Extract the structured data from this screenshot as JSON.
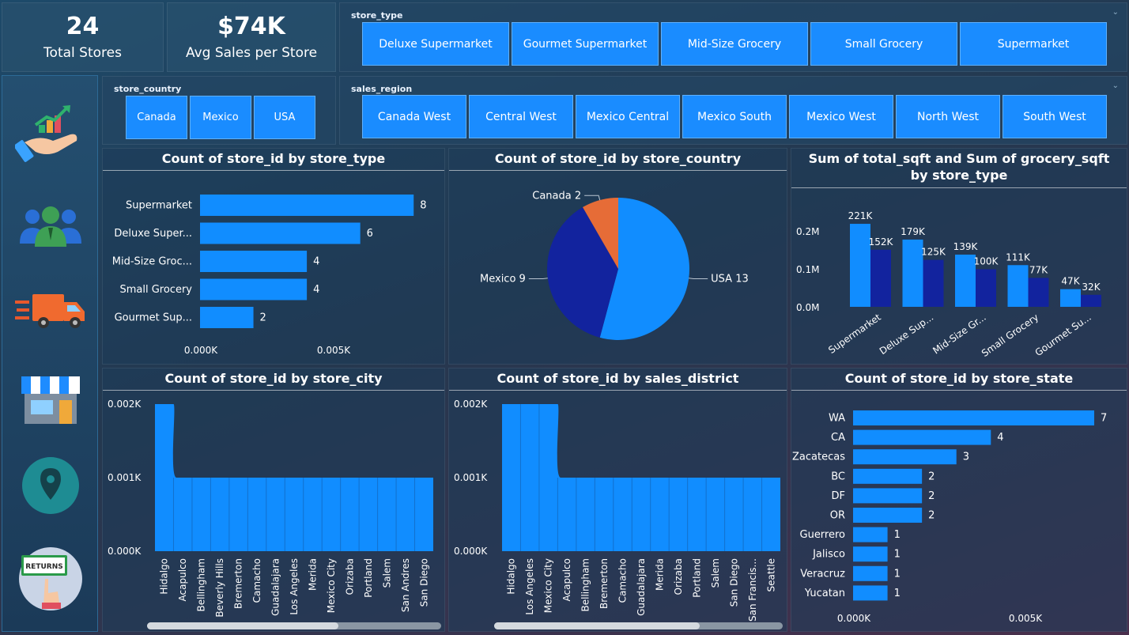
{
  "kpis": [
    {
      "value": "24",
      "label": "Total Stores"
    },
    {
      "value": "$74K",
      "label": "Avg Sales per Store"
    }
  ],
  "slicers": {
    "store_type": {
      "title": "store_type",
      "options": [
        "Deluxe Supermarket",
        "Gourmet Supermarket",
        "Mid-Size Grocery",
        "Small Grocery",
        "Supermarket"
      ]
    },
    "store_country": {
      "title": "store_country",
      "options": [
        "Canada",
        "Mexico",
        "USA"
      ]
    },
    "sales_region": {
      "title": "sales_region",
      "options": [
        "Canada West",
        "Central West",
        "Mexico Central",
        "Mexico South",
        "Mexico West",
        "North West",
        "South West"
      ]
    }
  },
  "nav": [
    {
      "icon": "sales-growth-icon"
    },
    {
      "icon": "customers-icon"
    },
    {
      "icon": "delivery-truck-icon"
    },
    {
      "icon": "store-icon"
    },
    {
      "icon": "location-pin-icon"
    },
    {
      "icon": "returns-icon"
    }
  ],
  "colors": {
    "bar": "#118dff",
    "bar_dark": "#12239e",
    "pie_orange": "#e66c37"
  },
  "chart_data": [
    {
      "id": "by_store_type",
      "type": "bar",
      "orientation": "horizontal",
      "title": "Count of store_id by store_type",
      "categories": [
        "Supermarket",
        "Deluxe Super...",
        "Mid-Size Groc...",
        "Small Grocery",
        "Gourmet Sup..."
      ],
      "values": [
        8,
        6,
        4,
        4,
        2
      ],
      "x_ticks": [
        "0.000K",
        "0.005K"
      ],
      "xlim": [
        0,
        9
      ]
    },
    {
      "id": "by_store_country",
      "type": "pie",
      "title": "Count of store_id by store_country",
      "categories": [
        "USA",
        "Mexico",
        "Canada"
      ],
      "values": [
        13,
        9,
        2
      ],
      "labels": [
        "USA 13",
        "Mexico 9",
        "Canada 2"
      ]
    },
    {
      "id": "sqft_by_store_type",
      "type": "bar",
      "title": "Sum of total_sqft and Sum of grocery_sqft by store_type",
      "categories": [
        "Supermarket",
        "Deluxe Sup...",
        "Mid-Size Gr...",
        "Small Grocery",
        "Gourmet Su..."
      ],
      "series": [
        {
          "values": [
            221,
            179,
            139,
            111,
            47
          ],
          "labels": [
            "221K",
            "179K",
            "139K",
            "111K",
            "47K"
          ]
        },
        {
          "values": [
            152,
            125,
            100,
            77,
            32
          ],
          "labels": [
            "152K",
            "125K",
            "100K",
            "77K",
            "32K"
          ]
        }
      ],
      "y_ticks": [
        "0.0M",
        "0.1M",
        "0.2M"
      ],
      "ylim": [
        0,
        0.2
      ]
    },
    {
      "id": "by_store_city",
      "type": "area",
      "title": "Count of store_id by store_city",
      "categories": [
        "Hidalgo",
        "Acapulco",
        "Bellingham",
        "Beverly Hills",
        "Bremerton",
        "Camacho",
        "Guadalajara",
        "Los Angeles",
        "Merida",
        "Mexico City",
        "Orizaba",
        "Portland",
        "Salem",
        "San Andres",
        "San Diego"
      ],
      "values": [
        2,
        1,
        1,
        1,
        1,
        1,
        1,
        1,
        1,
        1,
        1,
        1,
        1,
        1,
        1
      ],
      "y_ticks": [
        "0.000K",
        "0.001K",
        "0.002K"
      ],
      "ylim": [
        0,
        2
      ]
    },
    {
      "id": "by_sales_district",
      "type": "area",
      "title": "Count of store_id by sales_district",
      "categories": [
        "Hidalgo",
        "Los Angeles",
        "Mexico City",
        "Acapulco",
        "Bellingham",
        "Bremerton",
        "Camacho",
        "Guadalajara",
        "Merida",
        "Orizaba",
        "Portland",
        "Salem",
        "San Diego",
        "San Francis...",
        "Seattle"
      ],
      "values": [
        2,
        2,
        2,
        1,
        1,
        1,
        1,
        1,
        1,
        1,
        1,
        1,
        1,
        1,
        1
      ],
      "y_ticks": [
        "0.000K",
        "0.001K",
        "0.002K"
      ],
      "ylim": [
        0,
        2
      ]
    },
    {
      "id": "by_store_state",
      "type": "bar",
      "orientation": "horizontal",
      "title": "Count of store_id by store_state",
      "categories": [
        "WA",
        "CA",
        "Zacatecas",
        "BC",
        "DF",
        "OR",
        "Guerrero",
        "Jalisco",
        "Veracruz",
        "Yucatan"
      ],
      "values": [
        7,
        4,
        3,
        2,
        2,
        2,
        1,
        1,
        1,
        1
      ],
      "x_ticks": [
        "0.000K",
        "0.005K"
      ],
      "xlim": [
        0,
        7
      ]
    }
  ]
}
